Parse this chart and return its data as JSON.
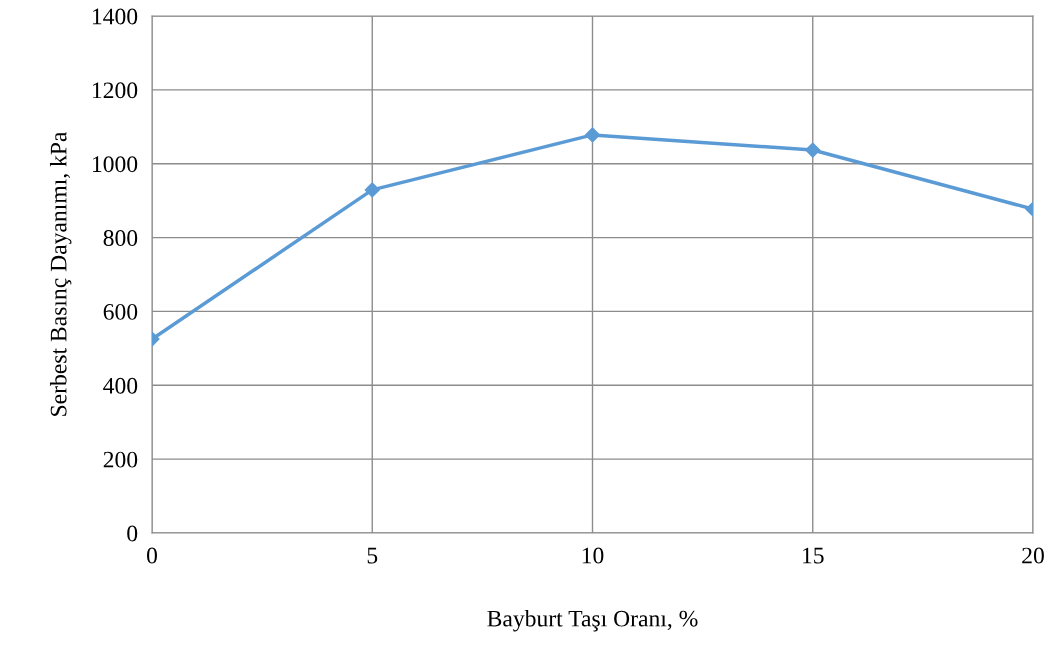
{
  "chart_data": {
    "type": "line",
    "xlabel": "Bayburt Taşı Oranı, %",
    "ylabel": "Serbest Basınç Dayanımı, kPa",
    "x": [
      0,
      5,
      10,
      15,
      20
    ],
    "series": [
      {
        "color": "#5b9bd5",
        "values": [
          525,
          929,
          1078,
          1037,
          877
        ]
      }
    ],
    "xlim": [
      0,
      20
    ],
    "xticks": [
      0,
      5,
      10,
      15,
      20
    ],
    "ylim": [
      0,
      1400
    ],
    "yticks": [
      0,
      200,
      400,
      600,
      800,
      1000,
      1200,
      1400
    ],
    "grid": true,
    "marker": "diamond",
    "line_style": "solid"
  }
}
